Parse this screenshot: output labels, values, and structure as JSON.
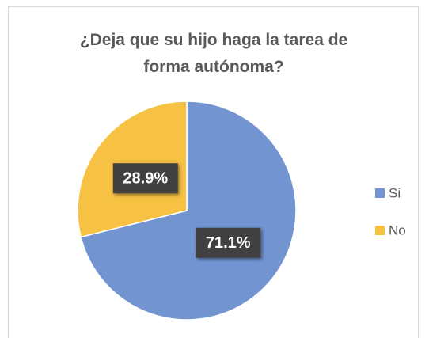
{
  "chart_data": {
    "type": "pie",
    "title": "¿Deja que su hijo haga la tarea de forma autónoma?",
    "categories": [
      "Si",
      "No"
    ],
    "values": [
      71.1,
      28.9
    ],
    "value_labels": [
      "71.1%",
      "28.9%"
    ],
    "colors": [
      "#7295d2",
      "#f7c244"
    ],
    "legend": "right"
  }
}
